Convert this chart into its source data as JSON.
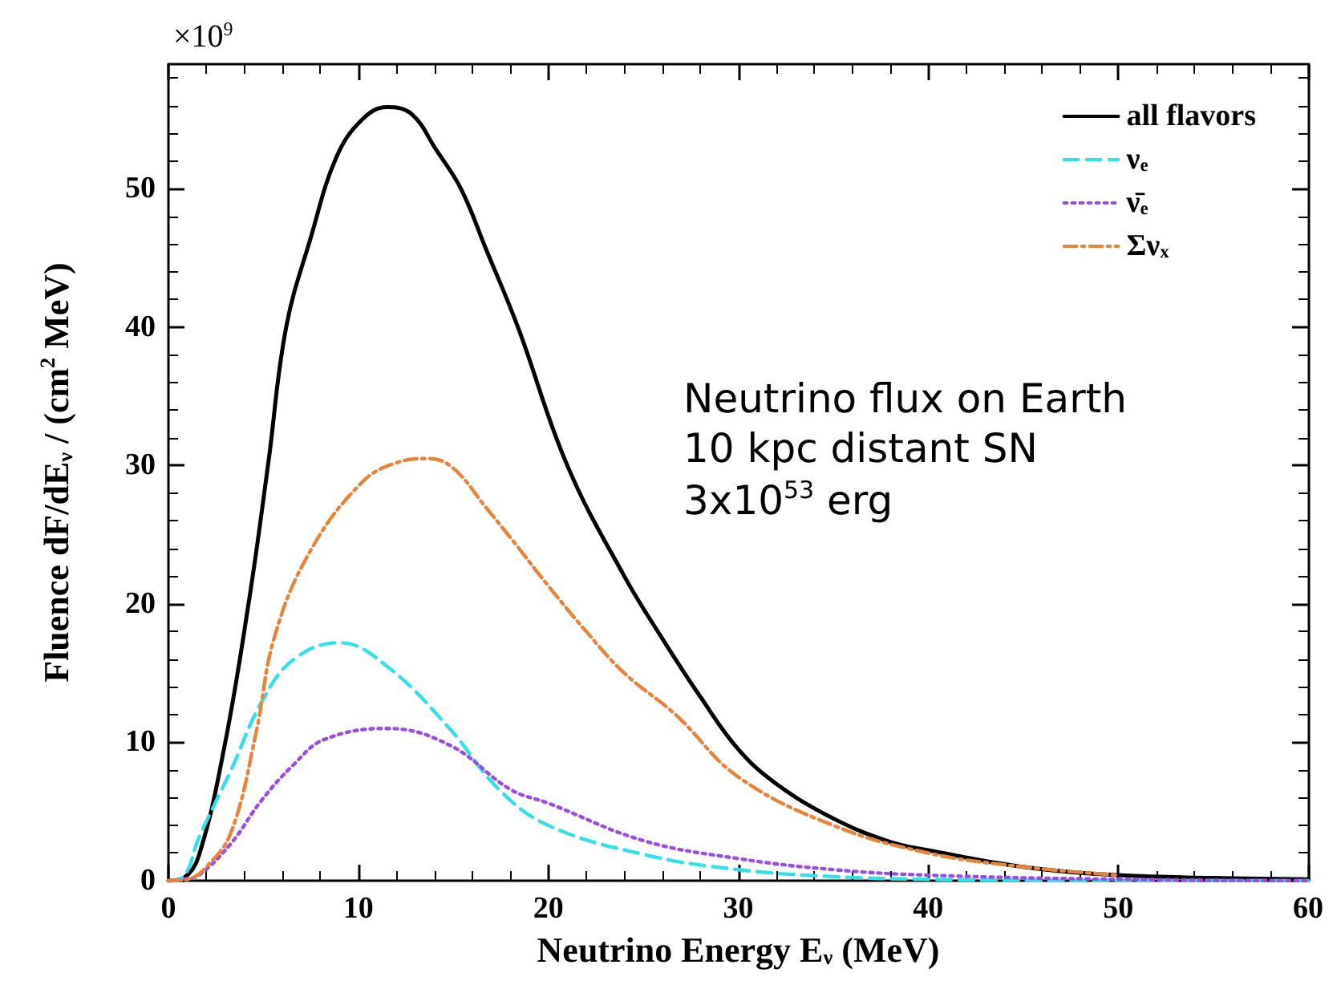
{
  "chart_data": {
    "type": "line",
    "xlabel": "Neutrino Energy E$_{ν}$ (MeV)",
    "ylabel": "Fluence dF/dE$_{ν}$ / (cm$^{2}$ MeV)",
    "xlim": [
      0,
      60
    ],
    "xticks": [
      0,
      10,
      20,
      30,
      40,
      50,
      60
    ],
    "ylim": [
      0,
      59
    ],
    "yticks": [
      0,
      10,
      20,
      30,
      40,
      50
    ],
    "grid": false,
    "legend": "top right",
    "marker": "none",
    "annotations": [
      "×10$^{9}$",
      "Neutrino flux on Earth",
      "10 kpc distant SN",
      "3x10$^{53}$ erg"
    ],
    "series": [
      {
        "name": "all flavors",
        "color": "#000000",
        "line_style": "solid",
        "x": [
          0,
          0.8,
          1.6,
          2.95,
          4.26,
          5.25,
          6.2,
          7.5,
          8.85,
          10.2,
          11.5,
          12.8,
          14.1,
          15.4,
          16.7,
          18.4,
          21,
          24,
          26,
          28,
          30,
          32,
          35,
          38,
          40,
          45,
          50,
          55,
          60
        ],
        "values": [
          0,
          0.2,
          1.8,
          9.7,
          20.4,
          30.1,
          40,
          46.5,
          52.3,
          55,
          55.9,
          55.4,
          52.8,
          50,
          45.7,
          40,
          30,
          22,
          17.5,
          13.3,
          9.5,
          7,
          4.5,
          2.8,
          2.2,
          1,
          0.4,
          0.2,
          0.1
        ]
      },
      {
        "name": "ν$_{e}$",
        "color": "#33e0e8",
        "line_style": "dashed",
        "x": [
          0,
          0.8,
          1.6,
          3.3,
          4.9,
          6.6,
          9,
          11.5,
          14.8,
          17.4,
          20,
          25,
          30,
          35,
          40,
          50,
          60
        ],
        "values": [
          0,
          0.3,
          3.1,
          8,
          12.9,
          16,
          17.2,
          15.5,
          11,
          6.6,
          4,
          1.9,
          0.8,
          0.3,
          0.1,
          0,
          0
        ]
      },
      {
        "name": "ν̄$_{e}$",
        "color": "#9a4de0",
        "line_style": "dotted",
        "x": [
          0,
          0.8,
          1.6,
          3.3,
          4.9,
          6.6,
          8.2,
          11.5,
          14.8,
          18,
          20,
          25,
          30,
          35,
          40,
          50,
          60
        ],
        "values": [
          0,
          0.1,
          0.4,
          2.7,
          5.8,
          8.4,
          10.2,
          11,
          9.8,
          6.6,
          5.6,
          2.9,
          1.6,
          0.8,
          0.4,
          0.1,
          0
        ]
      },
      {
        "name": "Σν$_{x}$",
        "color": "#e8843a",
        "line_style": "dashdot",
        "x": [
          0,
          1,
          2,
          3.3,
          4.6,
          5.6,
          7.5,
          10.2,
          12,
          13.7,
          15,
          16.7,
          18,
          20,
          22,
          24,
          26.7,
          30,
          35,
          40,
          45,
          50
        ],
        "values": [
          0,
          0.1,
          1,
          3.5,
          10.6,
          17.7,
          23.9,
          28.8,
          30.2,
          30.5,
          29.8,
          27,
          24.8,
          21.3,
          18,
          15,
          12,
          7.5,
          4,
          2,
          1,
          0.4
        ]
      }
    ]
  }
}
